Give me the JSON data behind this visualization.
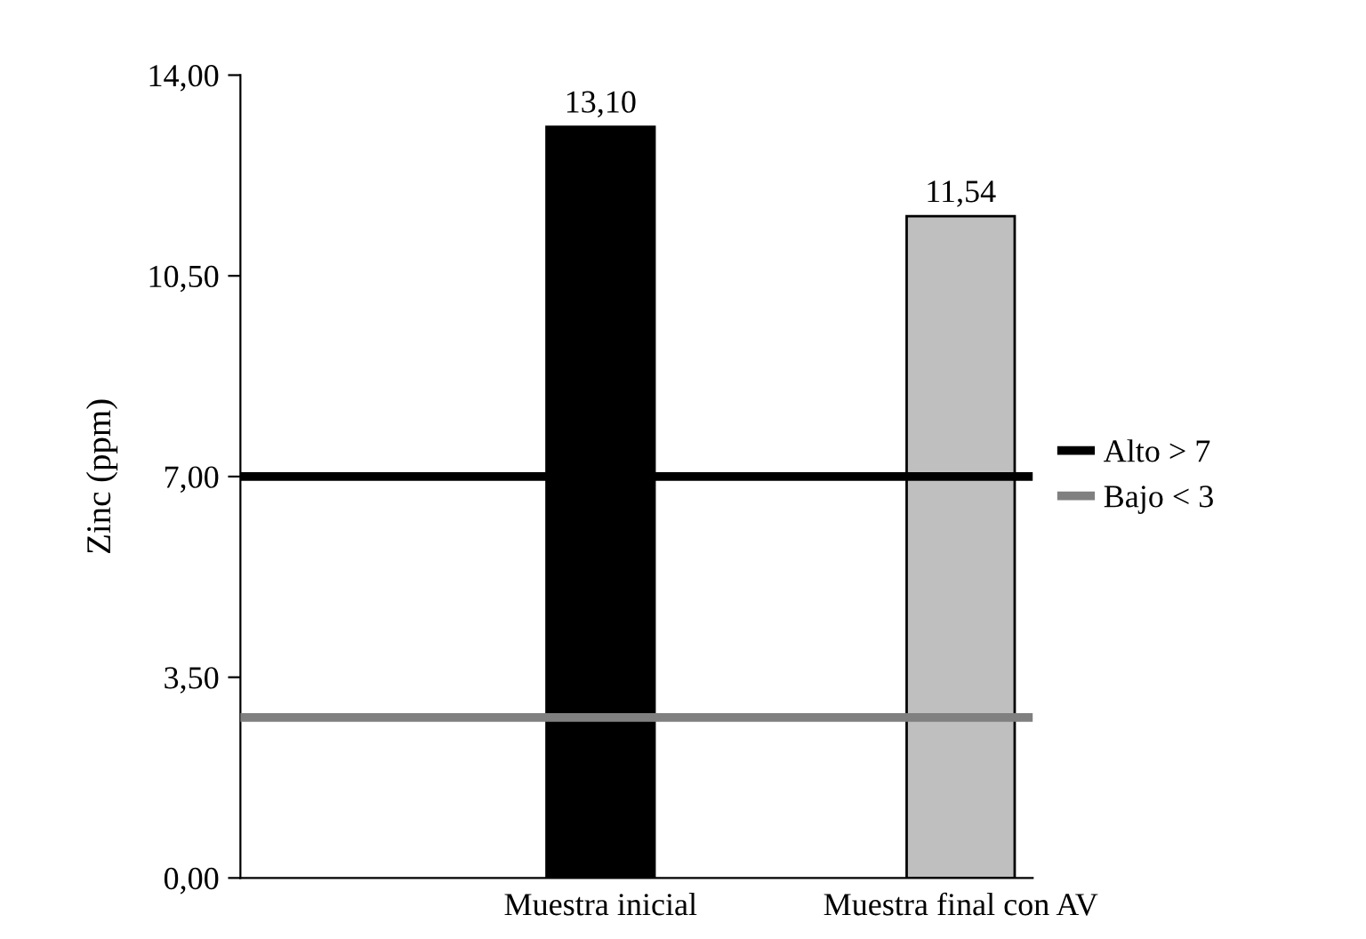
{
  "chart_data": {
    "type": "bar",
    "ylabel": "Zinc (ppm)",
    "categories": [
      "Muestra inicial",
      "Muestra final con AV"
    ],
    "values": [
      13.1,
      11.54
    ],
    "colors": [
      "#000000",
      "#bfbfbf"
    ],
    "value_labels": [
      "13,10",
      "11,54"
    ],
    "ylim": [
      0,
      14
    ],
    "yticks": [
      {
        "value": 0,
        "label": "0,00"
      },
      {
        "value": 3.5,
        "label": "3,50"
      },
      {
        "value": 7,
        "label": "7,00"
      },
      {
        "value": 10.5,
        "label": "10,50"
      },
      {
        "value": 14,
        "label": "14,00"
      }
    ],
    "ref_lines": [
      {
        "axis": "y",
        "value": 7,
        "label": "Alto > 7",
        "color": "#000000"
      },
      {
        "axis": "y",
        "value": 2.8,
        "label": "Bajo < 3",
        "color": "#808080"
      }
    ],
    "grid": false,
    "legend": "right"
  }
}
